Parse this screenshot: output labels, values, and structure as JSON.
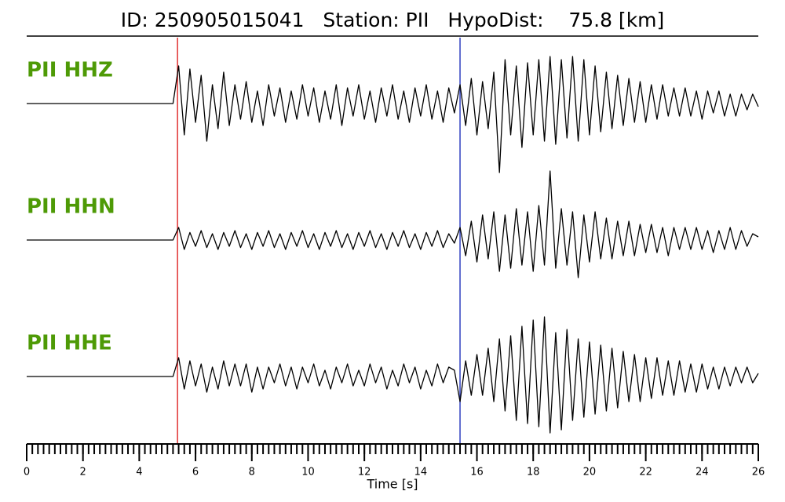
{
  "chart_data": {
    "type": "seismogram",
    "title": "ID: 250905015041   Station: PII   HypoDist:    75.8 [km]",
    "xlabel": "Time [s]",
    "xlim": [
      0,
      26
    ],
    "xticks": [
      0,
      2,
      4,
      6,
      8,
      10,
      12,
      14,
      16,
      18,
      20,
      22,
      24,
      26
    ],
    "minor_xtick_step": 0.2,
    "ylim": [
      -1,
      1
    ],
    "picks": [
      {
        "value": 5.36,
        "color": "#e03030"
      },
      {
        "value": 15.4,
        "color": "#3040c0"
      }
    ],
    "x": [
      0,
      0.2,
      0.4,
      0.6,
      0.8,
      1,
      1.2,
      1.4,
      1.6,
      1.8,
      2,
      2.2,
      2.4,
      2.6,
      2.8,
      3,
      3.2,
      3.4,
      3.6,
      3.8,
      4,
      4.2,
      4.4,
      4.6,
      4.8,
      5,
      5.2,
      5.4,
      5.6,
      5.8,
      6,
      6.2,
      6.4,
      6.6,
      6.8,
      7,
      7.2,
      7.4,
      7.6,
      7.8,
      8,
      8.2,
      8.4,
      8.6,
      8.8,
      9,
      9.2,
      9.4,
      9.6,
      9.8,
      10,
      10.2,
      10.4,
      10.6,
      10.8,
      11,
      11.2,
      11.4,
      11.6,
      11.8,
      12,
      12.2,
      12.4,
      12.6,
      12.8,
      13,
      13.2,
      13.4,
      13.6,
      13.8,
      14,
      14.2,
      14.4,
      14.6,
      14.8,
      15,
      15.2,
      15.4,
      15.6,
      15.8,
      16,
      16.2,
      16.4,
      16.6,
      16.8,
      17,
      17.2,
      17.4,
      17.6,
      17.8,
      18,
      18.2,
      18.4,
      18.6,
      18.8,
      19,
      19.2,
      19.4,
      19.6,
      19.8,
      20,
      20.2,
      20.4,
      20.6,
      20.8,
      21,
      21.2,
      21.4,
      21.6,
      21.8,
      22,
      22.2,
      22.4,
      22.6,
      22.8,
      23,
      23.2,
      23.4,
      23.6,
      23.8,
      24,
      24.2,
      24.4,
      24.6,
      24.8,
      25,
      25.2,
      25.4,
      25.6,
      25.8,
      26
    ],
    "series": [
      {
        "name": "PII HHZ",
        "color": "#000000",
        "values": [
          0,
          0,
          0,
          0,
          0,
          0,
          0,
          0,
          0,
          0,
          0,
          0,
          0,
          0,
          0,
          0,
          0,
          0,
          0,
          0,
          0,
          0,
          0,
          0,
          0,
          0,
          0,
          0.6,
          -0.5,
          0.55,
          -0.3,
          0.45,
          -0.6,
          0.3,
          -0.4,
          0.5,
          -0.35,
          0.3,
          -0.25,
          0.35,
          -0.3,
          0.2,
          -0.35,
          0.3,
          -0.2,
          0.25,
          -0.3,
          0.2,
          -0.25,
          0.3,
          -0.2,
          0.25,
          -0.3,
          0.2,
          -0.25,
          0.3,
          -0.35,
          0.25,
          -0.2,
          0.3,
          -0.25,
          0.2,
          -0.3,
          0.25,
          -0.2,
          0.3,
          -0.25,
          0.2,
          -0.3,
          0.25,
          -0.2,
          0.3,
          -0.25,
          0.2,
          -0.3,
          0.25,
          -0.15,
          0.3,
          -0.35,
          0.4,
          -0.5,
          0.35,
          -0.4,
          0.5,
          -1.1,
          0.7,
          -0.5,
          0.6,
          -0.7,
          0.65,
          -0.5,
          0.7,
          -0.6,
          0.75,
          -0.65,
          0.7,
          -0.55,
          0.75,
          -0.6,
          0.7,
          -0.5,
          0.6,
          -0.45,
          0.5,
          -0.4,
          0.45,
          -0.35,
          0.4,
          -0.3,
          0.35,
          -0.3,
          0.3,
          -0.25,
          0.3,
          -0.2,
          0.25,
          -0.2,
          0.25,
          -0.2,
          0.2,
          -0.25,
          0.2,
          -0.15,
          0.2,
          -0.2,
          0.15,
          -0.2,
          0.15,
          -0.1,
          0.15,
          -0.05
        ]
      },
      {
        "name": "PII HHN",
        "color": "#000000",
        "values": [
          0,
          0,
          0,
          0,
          0,
          0,
          0,
          0,
          0,
          0,
          0,
          0,
          0,
          0,
          0,
          0,
          0,
          0,
          0,
          0,
          0,
          0,
          0,
          0,
          0,
          0,
          0,
          0.2,
          -0.15,
          0.12,
          -0.1,
          0.15,
          -0.12,
          0.1,
          -0.15,
          0.12,
          -0.1,
          0.15,
          -0.12,
          0.1,
          -0.15,
          0.12,
          -0.1,
          0.15,
          -0.12,
          0.1,
          -0.15,
          0.12,
          -0.1,
          0.15,
          -0.12,
          0.1,
          -0.15,
          0.12,
          -0.1,
          0.15,
          -0.12,
          0.1,
          -0.15,
          0.12,
          -0.1,
          0.15,
          -0.12,
          0.1,
          -0.15,
          0.12,
          -0.1,
          0.15,
          -0.12,
          0.1,
          -0.15,
          0.12,
          -0.1,
          0.15,
          -0.12,
          0.1,
          -0.05,
          0.2,
          -0.25,
          0.3,
          -0.35,
          0.4,
          -0.3,
          0.45,
          -0.5,
          0.4,
          -0.45,
          0.5,
          -0.4,
          0.45,
          -0.5,
          0.55,
          -0.4,
          1.1,
          -0.45,
          0.5,
          -0.4,
          0.45,
          -0.6,
          0.4,
          -0.35,
          0.45,
          -0.3,
          0.35,
          -0.3,
          0.3,
          -0.25,
          0.3,
          -0.25,
          0.25,
          -0.2,
          0.25,
          -0.2,
          0.2,
          -0.25,
          0.2,
          -0.15,
          0.2,
          -0.15,
          0.2,
          -0.15,
          0.15,
          -0.2,
          0.15,
          -0.15,
          0.2,
          -0.15,
          0.15,
          -0.1,
          0.1,
          0.05
        ]
      },
      {
        "name": "PII HHE",
        "color": "#000000",
        "values": [
          0,
          0,
          0,
          0,
          0,
          0,
          0,
          0,
          0,
          0,
          0,
          0,
          0,
          0,
          0,
          0,
          0,
          0,
          0,
          0,
          0,
          0,
          0,
          0,
          0,
          0,
          0,
          0.3,
          -0.2,
          0.25,
          -0.15,
          0.2,
          -0.25,
          0.15,
          -0.2,
          0.25,
          -0.15,
          0.2,
          -0.15,
          0.2,
          -0.25,
          0.15,
          -0.2,
          0.15,
          -0.1,
          0.2,
          -0.15,
          0.15,
          -0.2,
          0.15,
          -0.1,
          0.2,
          -0.15,
          0.1,
          -0.2,
          0.15,
          -0.1,
          0.2,
          -0.15,
          0.1,
          -0.15,
          0.2,
          -0.1,
          0.15,
          -0.2,
          0.1,
          -0.15,
          0.2,
          -0.1,
          0.15,
          -0.2,
          0.1,
          -0.15,
          0.2,
          -0.1,
          0.15,
          0.1,
          -0.4,
          0.25,
          -0.3,
          0.35,
          -0.3,
          0.45,
          -0.4,
          0.6,
          -0.55,
          0.65,
          -0.7,
          0.8,
          -0.75,
          0.9,
          -0.8,
          0.95,
          -0.9,
          0.7,
          -0.85,
          0.75,
          -0.7,
          0.6,
          -0.65,
          0.55,
          -0.6,
          0.5,
          -0.55,
          0.45,
          -0.5,
          0.4,
          -0.4,
          0.35,
          -0.4,
          0.3,
          -0.35,
          0.3,
          -0.3,
          0.25,
          -0.3,
          0.25,
          -0.25,
          0.2,
          -0.25,
          0.2,
          -0.2,
          0.15,
          -0.2,
          0.15,
          -0.15,
          0.15,
          -0.1,
          0.15,
          -0.1,
          0.05
        ]
      }
    ]
  }
}
